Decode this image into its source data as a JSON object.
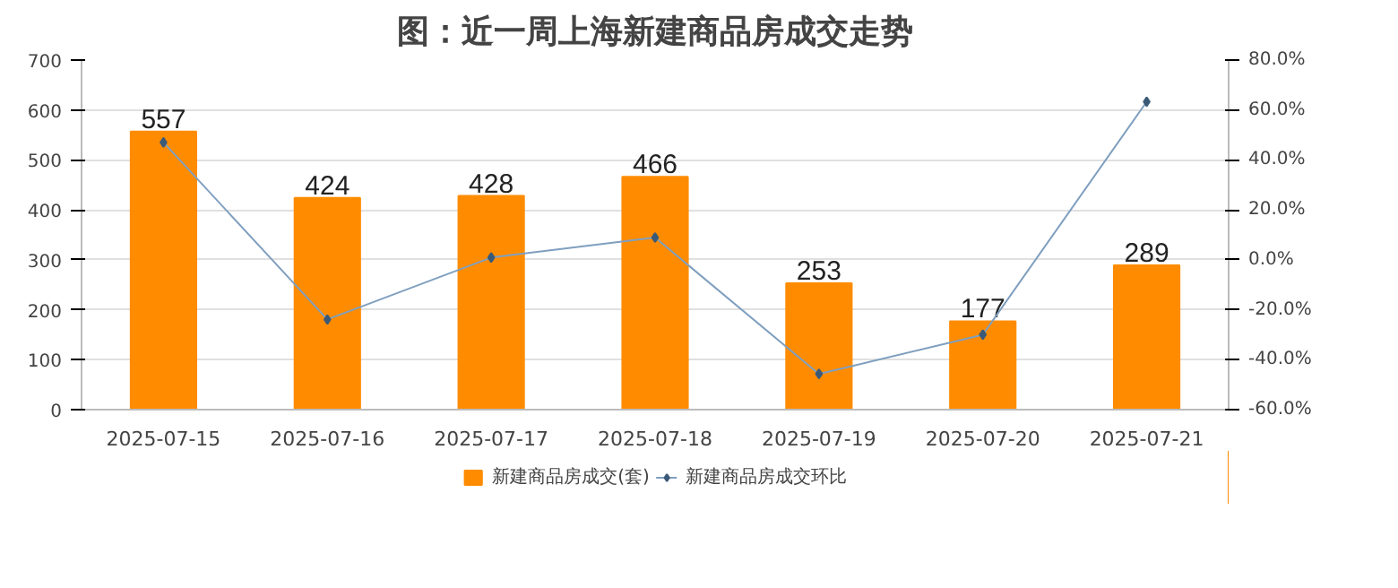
{
  "chart_data": {
    "type": "bar",
    "title": "图：近一周上海新建商品房成交走势",
    "categories": [
      "2025-07-15",
      "2025-07-16",
      "2025-07-17",
      "2025-07-18",
      "2025-07-19",
      "2025-07-20",
      "2025-07-21"
    ],
    "series": [
      {
        "name": "新建商品房成交(套)",
        "color": "#ff8c00",
        "values": [
          557,
          424,
          428,
          466,
          253,
          177,
          289
        ],
        "value_labels": [
          "557",
          "424",
          "428",
          "466",
          "253",
          "177",
          "289"
        ]
      },
      {
        "name": "新建商品房成交环比",
        "type": "line",
        "axis": "y2",
        "color": "#7f9fbf",
        "marker": "diamond",
        "values": [
          47,
          -23.9,
          0.9,
          8.9,
          -45.7,
          -30.0,
          63.3
        ]
      }
    ],
    "ylim": [
      0,
      700
    ],
    "yticks": [
      0,
      100,
      200,
      300,
      400,
      500,
      600,
      700
    ],
    "y2lim": [
      -60,
      80
    ],
    "y2ticks": [
      {
        "value": -60,
        "label": "-60.0%"
      },
      {
        "value": -40,
        "label": "-40.0%"
      },
      {
        "value": -20,
        "label": "-20.0%"
      },
      {
        "value": 0,
        "label": "0.0%"
      },
      {
        "value": 20,
        "label": "20.0%"
      },
      {
        "value": 40,
        "label": "40.0%"
      },
      {
        "value": 60,
        "label": "60.0%"
      },
      {
        "value": 80,
        "label": "80.0%"
      }
    ],
    "grid": "y",
    "legend": "bottom"
  }
}
